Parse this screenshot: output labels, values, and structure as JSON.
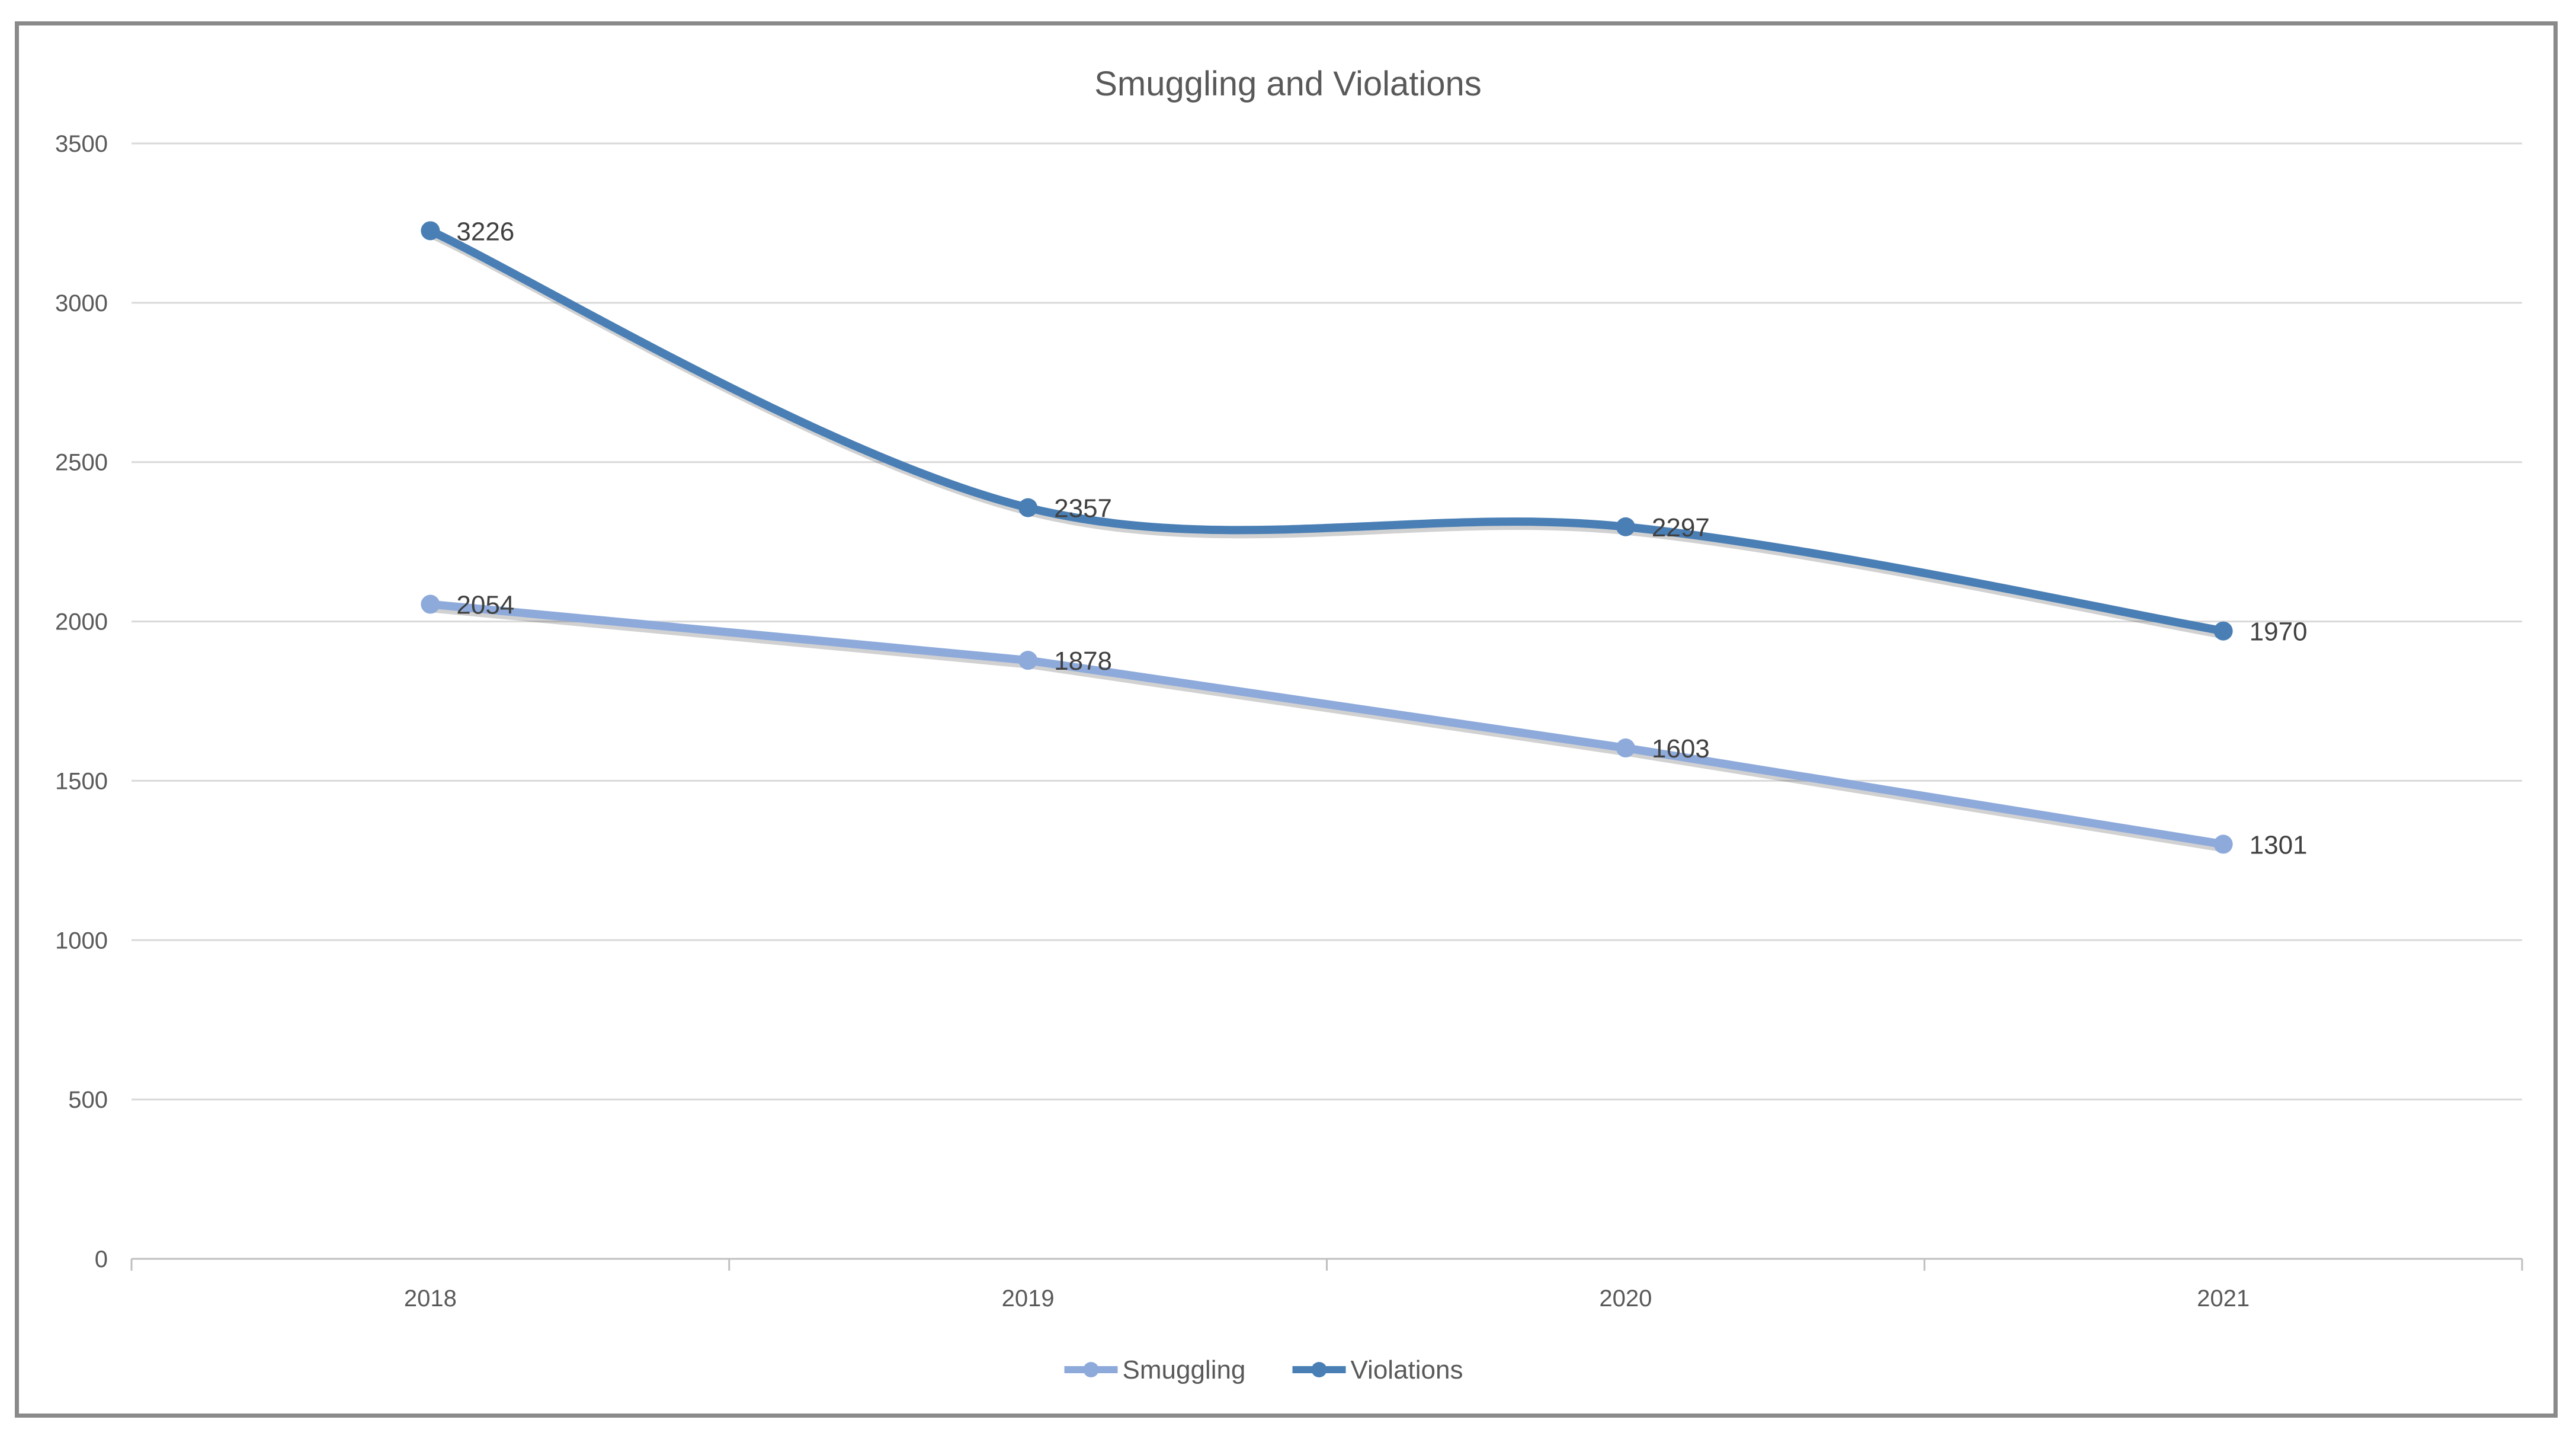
{
  "chart_data": {
    "type": "line",
    "title": "Smuggling and Violations",
    "xlabel": "",
    "ylabel": "",
    "categories": [
      "2018",
      "2019",
      "2020",
      "2021"
    ],
    "ylim": [
      0,
      3500
    ],
    "y_ticks": [
      0,
      500,
      1000,
      1500,
      2000,
      2500,
      3000,
      3500
    ],
    "grid": true,
    "legend_position": "bottom",
    "series": [
      {
        "name": "Smuggling",
        "values": [
          2054,
          1878,
          1603,
          1301
        ],
        "color": "#8eaadb",
        "smooth": false
      },
      {
        "name": "Violations",
        "values": [
          3226,
          2357,
          2297,
          1970
        ],
        "color": "#4a7fb5",
        "smooth": true
      }
    ]
  }
}
